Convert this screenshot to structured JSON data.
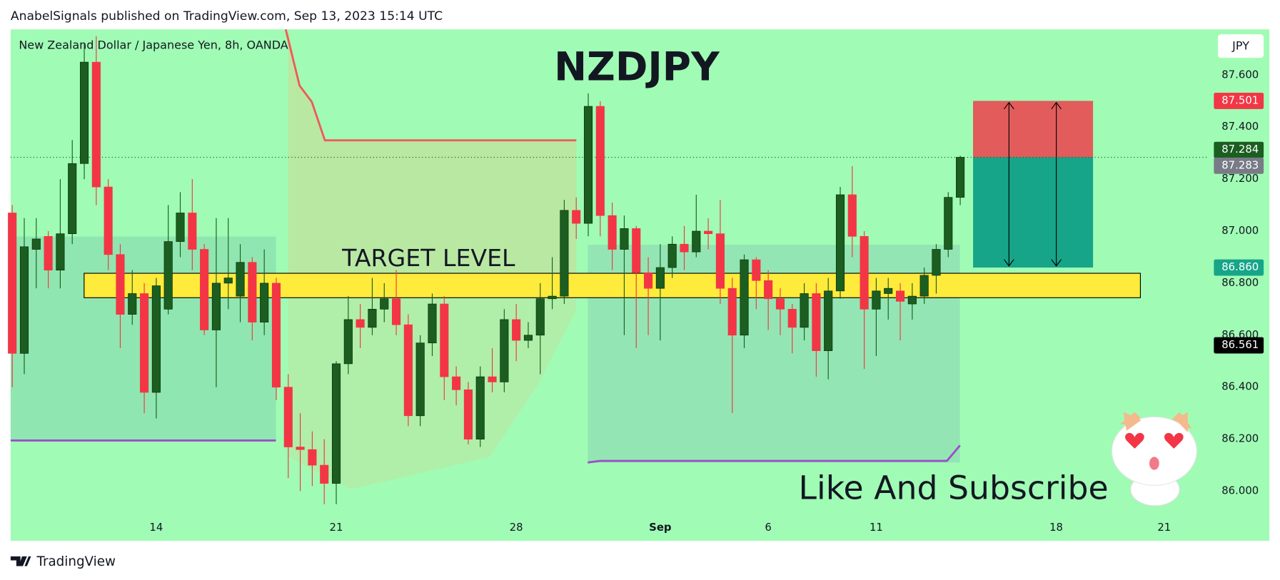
{
  "header": {
    "text": "AnabelSignals published on TradingView.com, Sep 13, 2023 15:14 UTC"
  },
  "chart_data": {
    "type": "candlestick",
    "title": "NZDJPY",
    "subtitle": "New Zealand Dollar / Japanese Yen, 8h, OANDA",
    "currency": "JPY",
    "up_color": "#1b5e20",
    "down_color": "#f23645",
    "open": [
      87.07,
      86.53,
      86.93,
      86.98,
      86.85,
      86.99,
      87.26,
      87.65,
      87.17,
      86.91,
      86.68,
      86.76,
      86.38,
      86.7,
      86.96,
      87.07,
      86.93,
      86.62,
      86.8,
      86.75,
      86.88,
      86.65,
      86.8,
      86.4,
      86.17,
      86.16,
      86.1,
      86.03,
      86.49,
      86.66,
      86.63,
      86.7,
      86.74,
      86.64,
      86.29,
      86.57,
      86.72,
      86.44,
      86.39,
      86.2,
      86.44,
      86.42,
      86.66,
      86.58,
      86.6,
      86.74,
      86.75,
      87.08,
      87.03,
      87.48,
      87.06,
      86.93,
      87.01,
      86.84,
      86.78,
      86.86,
      86.95,
      86.92,
      87.0,
      86.99,
      86.78,
      86.6,
      86.89,
      86.81,
      86.74,
      86.7,
      86.63,
      86.76,
      86.54,
      86.77,
      87.14,
      86.98,
      86.7,
      86.76,
      86.77,
      86.72,
      86.75,
      86.83,
      86.93,
      87.13
    ],
    "high": [
      87.1,
      87.05,
      87.05,
      87.0,
      87.2,
      87.35,
      87.72,
      87.75,
      87.2,
      86.95,
      86.85,
      86.8,
      86.82,
      87.1,
      87.15,
      87.2,
      86.95,
      87.05,
      87.05,
      86.95,
      86.9,
      86.93,
      86.82,
      86.45,
      86.3,
      86.23,
      86.2,
      86.5,
      86.75,
      86.72,
      86.82,
      86.8,
      86.85,
      86.68,
      86.6,
      86.76,
      86.75,
      86.48,
      86.42,
      86.48,
      86.55,
      86.7,
      86.72,
      86.65,
      86.8,
      86.9,
      87.12,
      87.13,
      87.53,
      87.5,
      87.11,
      87.06,
      87.02,
      86.9,
      86.95,
      86.98,
      87.02,
      87.14,
      87.05,
      87.12,
      86.82,
      86.91,
      86.9,
      86.85,
      86.78,
      86.72,
      86.8,
      86.8,
      86.82,
      87.17,
      87.25,
      87.0,
      86.82,
      86.82,
      86.8,
      86.8,
      86.86,
      86.95,
      87.15,
      87.29
    ],
    "low": [
      86.4,
      86.45,
      86.78,
      86.78,
      86.78,
      86.95,
      87.2,
      87.1,
      86.85,
      86.55,
      86.64,
      86.3,
      86.28,
      86.68,
      86.9,
      86.85,
      86.6,
      86.4,
      86.7,
      86.65,
      86.58,
      86.6,
      86.35,
      86.05,
      86.0,
      86.02,
      85.95,
      85.95,
      86.45,
      86.55,
      86.6,
      86.65,
      86.6,
      86.25,
      86.25,
      86.52,
      86.35,
      86.33,
      86.18,
      86.17,
      86.38,
      86.38,
      86.5,
      86.55,
      86.45,
      86.7,
      86.72,
      86.97,
      86.98,
      86.98,
      86.85,
      86.6,
      86.55,
      86.6,
      86.58,
      86.82,
      86.85,
      86.9,
      86.93,
      86.72,
      86.3,
      86.55,
      86.7,
      86.62,
      86.6,
      86.53,
      86.58,
      86.44,
      86.43,
      86.74,
      86.9,
      86.47,
      86.52,
      86.66,
      86.58,
      86.66,
      86.72,
      86.76,
      86.9,
      87.1
    ],
    "close": [
      86.53,
      86.94,
      86.97,
      86.85,
      86.99,
      87.26,
      87.65,
      87.17,
      86.91,
      86.68,
      86.76,
      86.38,
      86.79,
      86.96,
      87.07,
      86.93,
      86.62,
      86.8,
      86.82,
      86.88,
      86.65,
      86.8,
      86.4,
      86.17,
      86.16,
      86.1,
      86.03,
      86.49,
      86.66,
      86.63,
      86.7,
      86.74,
      86.64,
      86.29,
      86.57,
      86.72,
      86.44,
      86.39,
      86.2,
      86.44,
      86.42,
      86.66,
      86.58,
      86.6,
      86.74,
      86.75,
      87.08,
      87.03,
      87.48,
      87.06,
      86.93,
      87.01,
      86.84,
      86.78,
      86.86,
      86.95,
      86.92,
      87.0,
      86.99,
      86.78,
      86.6,
      86.89,
      86.81,
      86.74,
      86.7,
      86.63,
      86.76,
      86.54,
      86.77,
      87.14,
      86.98,
      86.7,
      86.77,
      86.78,
      86.73,
      86.75,
      86.83,
      86.93,
      87.13,
      87.284
    ],
    "ylim": [
      85.809,
      87.776
    ],
    "yticks": [
      {
        "value": 86.0,
        "label": "86.000"
      },
      {
        "value": 86.2,
        "label": "86.200"
      },
      {
        "value": 86.4,
        "label": "86.400"
      },
      {
        "value": 86.6,
        "label": "86.600"
      },
      {
        "value": 86.8,
        "label": "86.800"
      },
      {
        "value": 87.0,
        "label": "87.000"
      },
      {
        "value": 87.2,
        "label": "87.200"
      },
      {
        "value": 87.4,
        "label": "87.400"
      },
      {
        "value": 87.6,
        "label": "87.600"
      }
    ],
    "xticks": [
      {
        "value": 12,
        "label": "14"
      },
      {
        "value": 27,
        "label": "21"
      },
      {
        "value": 42,
        "label": "28"
      },
      {
        "value": 54,
        "label": "Sep"
      },
      {
        "value": 63,
        "label": "6"
      },
      {
        "value": 72,
        "label": "11"
      },
      {
        "value": 87,
        "label": "18"
      },
      {
        "value": 96,
        "label": "21"
      }
    ],
    "price_labels": [
      {
        "value": 87.501,
        "label": "87.501",
        "color": "#f23645"
      },
      {
        "value": 87.284,
        "label": "87.284",
        "color": "#1b5e20"
      },
      {
        "value": 87.283,
        "label": "87.283",
        "color": "#787b86"
      },
      {
        "value": 86.86,
        "label": "86.860",
        "color": "#17a589"
      },
      {
        "value": 86.561,
        "label": "86.561",
        "color": "#000000"
      }
    ],
    "target": {
      "label": "TARGET LEVEL",
      "range": [
        86.744,
        86.838
      ]
    },
    "cta": "Like And Subscribe"
  },
  "footer": {
    "brand": "TradingView"
  }
}
